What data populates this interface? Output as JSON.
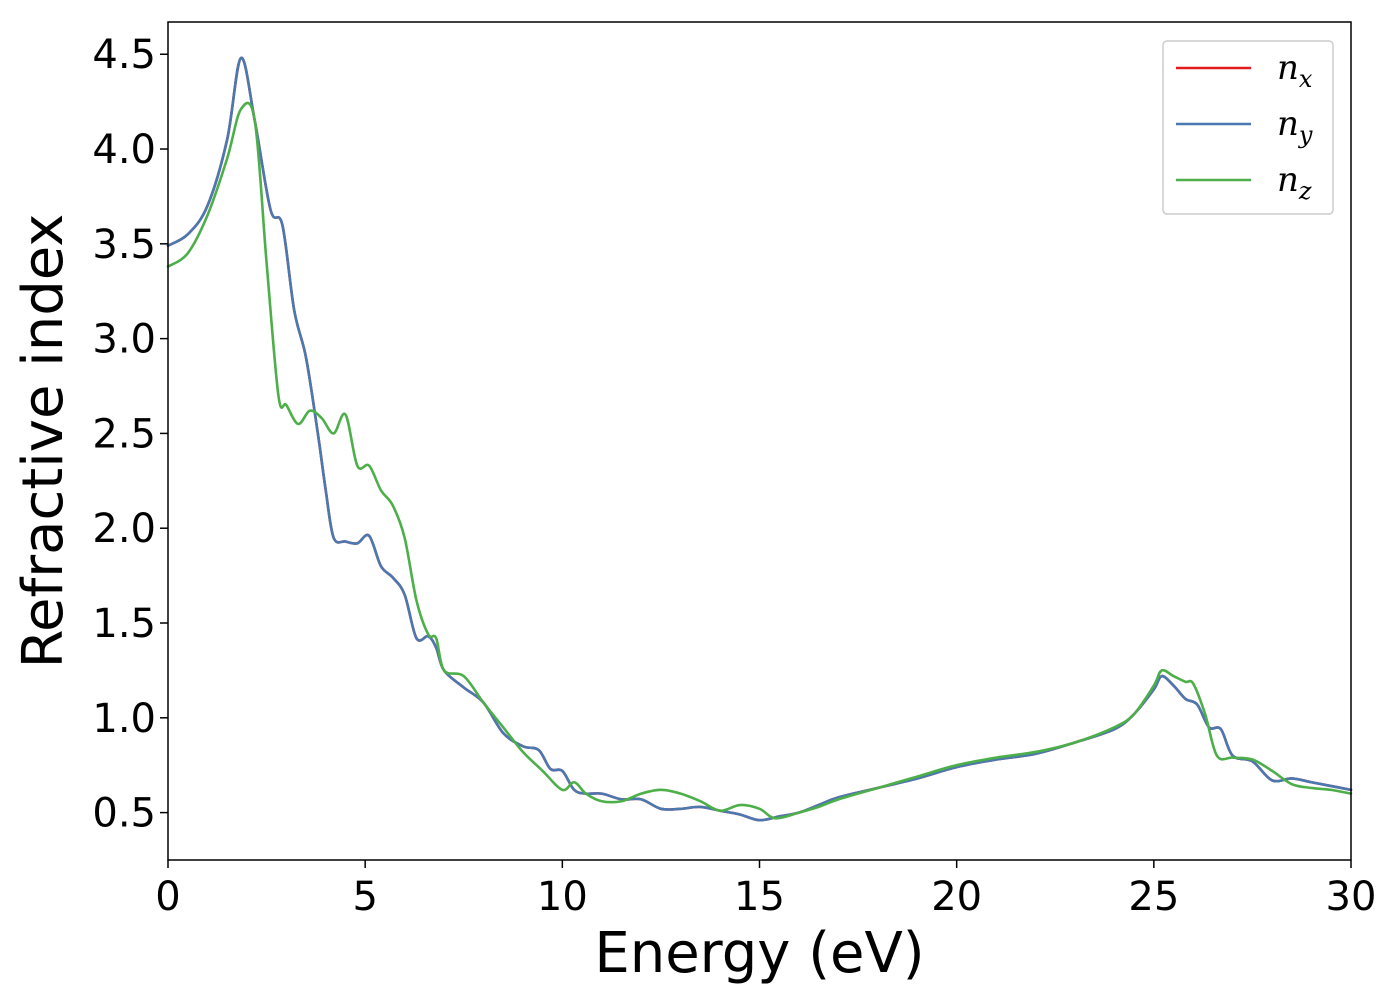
{
  "chart_data": {
    "type": "line",
    "title": "",
    "xlabel": "Energy (eV)",
    "ylabel": "Refractive index",
    "xlim": [
      0,
      30
    ],
    "ylim": [
      0.25,
      4.67
    ],
    "xticks": [
      0,
      5,
      10,
      15,
      20,
      25,
      30
    ],
    "yticks": [
      0.5,
      1.0,
      1.5,
      2.0,
      2.5,
      3.0,
      3.5,
      4.0,
      4.5
    ],
    "grid": false,
    "legend_position": "top-right",
    "series": [
      {
        "name": "n",
        "subscript": "x",
        "color": "#e41a1c",
        "x": [
          0,
          0.5,
          1.0,
          1.5,
          1.85,
          2.2,
          2.6,
          2.9,
          3.2,
          3.5,
          3.8,
          4.0,
          4.2,
          4.5,
          4.8,
          5.1,
          5.4,
          5.7,
          6.0,
          6.3,
          6.6,
          6.8,
          7.0,
          7.5,
          8.0,
          8.5,
          9.0,
          9.4,
          9.7,
          10.0,
          10.3,
          10.6,
          11.0,
          11.5,
          12.0,
          12.5,
          13.0,
          13.5,
          14.0,
          14.5,
          15.0,
          15.5,
          16.0,
          16.5,
          17.0,
          18.0,
          19.0,
          20.0,
          21.0,
          22.0,
          23.0,
          24.0,
          24.5,
          25.0,
          25.2,
          25.5,
          25.8,
          26.1,
          26.4,
          26.7,
          27.0,
          27.5,
          28.0,
          28.5,
          29.0,
          29.5,
          30.0
        ],
        "y": [
          3.49,
          3.55,
          3.7,
          4.05,
          4.48,
          4.15,
          3.68,
          3.6,
          3.15,
          2.9,
          2.5,
          2.2,
          1.95,
          1.93,
          1.92,
          1.96,
          1.8,
          1.74,
          1.65,
          1.42,
          1.43,
          1.37,
          1.25,
          1.16,
          1.08,
          0.92,
          0.85,
          0.83,
          0.73,
          0.72,
          0.62,
          0.6,
          0.6,
          0.57,
          0.57,
          0.52,
          0.52,
          0.53,
          0.51,
          0.49,
          0.46,
          0.48,
          0.5,
          0.54,
          0.58,
          0.63,
          0.68,
          0.74,
          0.78,
          0.81,
          0.87,
          0.94,
          1.02,
          1.15,
          1.22,
          1.17,
          1.1,
          1.07,
          0.95,
          0.94,
          0.8,
          0.77,
          0.67,
          0.68,
          0.66,
          0.64,
          0.62
        ]
      },
      {
        "name": "n",
        "subscript": "y",
        "color": "#4a78b0",
        "x": [
          0,
          0.5,
          1.0,
          1.5,
          1.85,
          2.2,
          2.6,
          2.9,
          3.2,
          3.5,
          3.8,
          4.0,
          4.2,
          4.5,
          4.8,
          5.1,
          5.4,
          5.7,
          6.0,
          6.3,
          6.6,
          6.8,
          7.0,
          7.5,
          8.0,
          8.5,
          9.0,
          9.4,
          9.7,
          10.0,
          10.3,
          10.6,
          11.0,
          11.5,
          12.0,
          12.5,
          13.0,
          13.5,
          14.0,
          14.5,
          15.0,
          15.5,
          16.0,
          16.5,
          17.0,
          18.0,
          19.0,
          20.0,
          21.0,
          22.0,
          23.0,
          24.0,
          24.5,
          25.0,
          25.2,
          25.5,
          25.8,
          26.1,
          26.4,
          26.7,
          27.0,
          27.5,
          28.0,
          28.5,
          29.0,
          29.5,
          30.0
        ],
        "y": [
          3.49,
          3.55,
          3.7,
          4.05,
          4.48,
          4.15,
          3.68,
          3.6,
          3.15,
          2.9,
          2.5,
          2.2,
          1.95,
          1.93,
          1.92,
          1.96,
          1.8,
          1.74,
          1.65,
          1.42,
          1.43,
          1.37,
          1.25,
          1.16,
          1.08,
          0.92,
          0.85,
          0.83,
          0.73,
          0.72,
          0.62,
          0.6,
          0.6,
          0.57,
          0.57,
          0.52,
          0.52,
          0.53,
          0.51,
          0.49,
          0.46,
          0.48,
          0.5,
          0.54,
          0.58,
          0.63,
          0.68,
          0.74,
          0.78,
          0.81,
          0.87,
          0.94,
          1.02,
          1.15,
          1.22,
          1.17,
          1.1,
          1.07,
          0.95,
          0.94,
          0.8,
          0.77,
          0.67,
          0.68,
          0.66,
          0.64,
          0.62
        ]
      },
      {
        "name": "n",
        "subscript": "z",
        "color": "#4daf4a",
        "x": [
          0,
          0.5,
          1.0,
          1.5,
          1.85,
          2.2,
          2.5,
          2.8,
          3.0,
          3.3,
          3.6,
          3.9,
          4.2,
          4.5,
          4.8,
          5.1,
          5.4,
          5.7,
          6.0,
          6.3,
          6.6,
          6.8,
          7.0,
          7.5,
          8.0,
          8.5,
          9.0,
          9.5,
          10.0,
          10.3,
          10.6,
          11.0,
          11.5,
          12.0,
          12.5,
          13.0,
          13.5,
          14.0,
          14.5,
          15.0,
          15.4,
          16.0,
          16.5,
          17.0,
          18.0,
          19.0,
          20.0,
          21.0,
          22.0,
          23.0,
          24.0,
          24.5,
          25.0,
          25.2,
          25.5,
          25.8,
          26.0,
          26.3,
          26.6,
          27.0,
          27.5,
          28.0,
          28.5,
          29.0,
          29.5,
          30.0
        ],
        "y": [
          3.38,
          3.45,
          3.65,
          3.95,
          4.21,
          4.15,
          3.4,
          2.7,
          2.65,
          2.55,
          2.62,
          2.58,
          2.5,
          2.6,
          2.33,
          2.33,
          2.2,
          2.12,
          1.95,
          1.62,
          1.44,
          1.42,
          1.25,
          1.22,
          1.08,
          0.95,
          0.82,
          0.72,
          0.62,
          0.66,
          0.6,
          0.56,
          0.56,
          0.6,
          0.62,
          0.6,
          0.56,
          0.51,
          0.54,
          0.52,
          0.47,
          0.5,
          0.53,
          0.57,
          0.63,
          0.69,
          0.75,
          0.79,
          0.82,
          0.87,
          0.95,
          1.02,
          1.17,
          1.25,
          1.22,
          1.19,
          1.18,
          1.02,
          0.8,
          0.79,
          0.78,
          0.72,
          0.65,
          0.63,
          0.62,
          0.6
        ]
      }
    ]
  }
}
